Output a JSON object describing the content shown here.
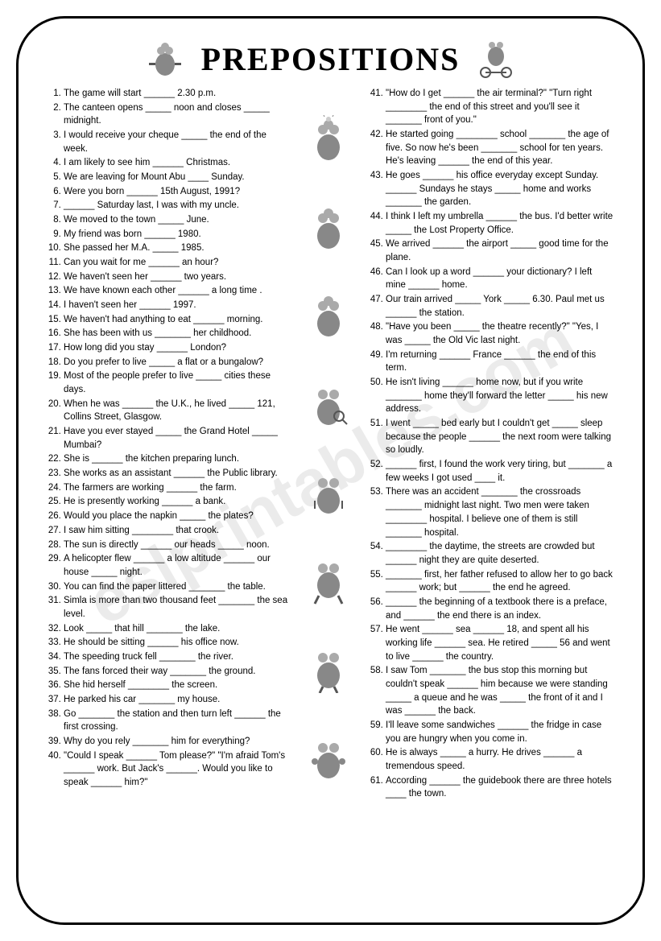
{
  "title": "PREPOSITIONS",
  "watermark": "eslprintables.com",
  "left_items": [
    "The game will start ______ 2.30 p.m.",
    "The canteen opens _____ noon and closes _____ midnight.",
    "I would receive your cheque _____ the end of the week.",
    "I am likely to see him ______ Christmas.",
    "We are leaving for Mount Abu ____ Sunday.",
    "Were you born ______ 15th August, 1991?",
    "______ Saturday last, I was with my uncle.",
    "We moved to the town _____ June.",
    "My friend was born ______ 1980.",
    "She passed her M.A. _____ 1985.",
    "Can you wait for me ______ an hour?",
    "We haven't seen her ______ two years.",
    "We have known each other ______ a long time .",
    "I haven't seen her ______ 1997.",
    "We haven't had anything to eat ______ morning.",
    "She has been with us _______ her childhood.",
    "How long did you stay ______ London?",
    "Do you prefer to live _____ a flat or a bungalow?",
    "Most of the people prefer to live _____ cities these days.",
    "When he was ______ the U.K., he lived _____ 121, Collins Street, Glasgow.",
    "Have you ever stayed _____ the Grand Hotel _____ Mumbai?",
    "She is ______ the kitchen preparing lunch.",
    "She works as an assistant ______ the Public library.",
    "The farmers are working ______ the farm.",
    "He is presently working ______ a bank.",
    "Would you place the napkin _____ the plates?",
    "I saw him sitting ________ that crook.",
    "The sun is directly ______ our heads _____ noon.",
    "A helicopter flew ______ a low altitude ______ our house _____ night.",
    "You can find the paper littered _______ the table.",
    "Simla is more than two thousand feet _______ the sea level.",
    "Look _____ that hill _______ the lake.",
    "He should be sitting ______ his office now.",
    "The speeding truck fell _______ the river.",
    "The fans forced their way _______ the ground.",
    "She hid herself ________ the screen.",
    "He parked his car _______ my house.",
    "Go _______ the station and then turn left ______ the first crossing.",
    "Why do you rely _______ him for everything?",
    "\"Could I speak ______ Tom please?\" \"I'm afraid Tom's ______ work. But Jack's ______. Would you like to speak ______ him?\""
  ],
  "right_start": 41,
  "right_items": [
    "\"How do I get ______ the air terminal?\" \"Turn right ________ the end of this street and you'll see it _______ front of you.\"",
    "He started going ________ school _______ the age of five. So now he's been _______ school for ten years. He's leaving ______ the end of this year.",
    "He goes ______ his office everyday except Sunday. ______ Sundays he stays _____ home and works _______ the garden.",
    "I think I left my umbrella ______ the bus. I'd better write _____ the Lost Property Office.",
    "We arrived ______ the airport _____ good time for the plane.",
    "Can I look up a word ______ your dictionary? I left mine ______ home.",
    "Our train arrived _____ York _____ 6.30. Paul met us ______ the station.",
    "\"Have you been _____ the theatre recently?\" \"Yes, I was _____ the Old Vic last night.",
    "I'm returning ______ France ______ the end of this term.",
    "He isn't living ______ home now, but if you write _______ home they'll forward the letter _____ his new address.",
    "I went _____ bed early but I couldn't get _____ sleep because the people ______ the next room were talking so loudly.",
    "______ first, I found the work very tiring, but _______ a few weeks I got used ____ it.",
    "There was an accident _______ the crossroads _______ midnight last night. Two men were taken ________ hospital. I believe one of them is still _______ hospital.",
    "________ the daytime, the streets are crowded but ______ night they are quite deserted.",
    "_______ first, her father refused to allow her to go back ______ work; but ______ the end he agreed.",
    "______ the beginning of a textbook there is a preface, and ______ the end there is an index.",
    "He went ______ sea ______ 18, and spent all his working life ______ sea. He retired _____ 56 and went to live ______ the country.",
    "I saw Tom _______ the bus stop this morning but couldn't speak ______ him because we were standing _____ a queue and he was _____ the front of it and I was ______ the back.",
    "I'll leave some sandwiches ______ the fridge in case you are hungry when you come in.",
    "He is always _____ a hurry. He drives ______ a tremendous speed.",
    "According ______ the guidebook there are three hotels ____ the town."
  ]
}
